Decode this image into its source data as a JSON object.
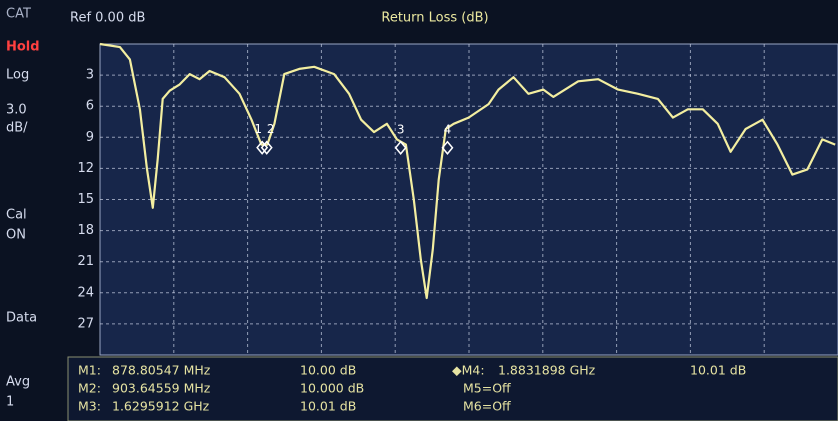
{
  "chart_data": {
    "type": "line",
    "title": "Return Loss (dB)",
    "reference": "Ref 0.00 dB",
    "x": [
      0,
      108,
      162,
      216,
      254,
      286,
      313,
      340,
      378,
      432,
      486,
      540,
      594,
      675,
      756,
      821,
      875,
      907,
      945,
      999,
      1080,
      1161,
      1269,
      1350,
      1415,
      1485,
      1555,
      1609,
      1658,
      1701,
      1739,
      1771,
      1804,
      1836,
      1874,
      1917,
      1998,
      2106,
      2160,
      2241,
      2322,
      2403,
      2457,
      2592,
      2700,
      2808,
      2916,
      3024,
      3105,
      3186,
      3267,
      3348,
      3418,
      3499,
      3591,
      3672,
      3753,
      3834,
      3915,
      3985
    ],
    "values": [
      0,
      0.3,
      1.5,
      6.3,
      12,
      15.8,
      11.1,
      5.3,
      4.5,
      3.9,
      2.9,
      3.4,
      2.6,
      3.2,
      4.8,
      7.3,
      9.7,
      9.7,
      7.7,
      2.9,
      2.4,
      2.2,
      2.9,
      4.8,
      7.3,
      8.5,
      7.7,
      9.2,
      9.7,
      15,
      20.8,
      24.5,
      19.8,
      13.1,
      8.2,
      7.7,
      7.1,
      5.8,
      4.4,
      3.2,
      4.8,
      4.4,
      5.1,
      3.6,
      3.4,
      4.4,
      4.8,
      5.3,
      7.1,
      6.3,
      6.3,
      7.7,
      10.4,
      8.2,
      7.3,
      9.7,
      12.6,
      12.1,
      9.2,
      9.7
    ],
    "color": "#f3eea0",
    "xlim": [
      0,
      4000
    ],
    "ylim": [
      0,
      30
    ],
    "y_inverted": true,
    "yticks": [
      3,
      6,
      9,
      12,
      15,
      18,
      21,
      24,
      27
    ],
    "grid": true,
    "markers": [
      {
        "label": "1",
        "x": 878.80547,
        "y": 10.0
      },
      {
        "label": "2",
        "x": 903.64559,
        "y": 10.0
      },
      {
        "label": "3",
        "x": 1629.5912,
        "y": 10.01
      },
      {
        "label": "4",
        "x": 1883.1898,
        "y": 10.01
      }
    ]
  },
  "sidebar": [
    "CAT",
    "Hold",
    "Log",
    "3.0",
    "dB/",
    "Cal",
    "ON",
    "Data",
    "Avg",
    "1"
  ],
  "marker_table": {
    "left": [
      [
        "M1:",
        "878.80547 MHz",
        "10.00 dB"
      ],
      [
        "M2:",
        "903.64559 MHz",
        "10.000 dB"
      ],
      [
        "M3:",
        "1.6295912 GHz",
        "10.01 dB"
      ]
    ],
    "right": [
      [
        "◆M4:",
        "1.8831898 GHz",
        "10.01 dB"
      ],
      [
        "M5=Off"
      ],
      [
        "M6=Off"
      ]
    ]
  }
}
